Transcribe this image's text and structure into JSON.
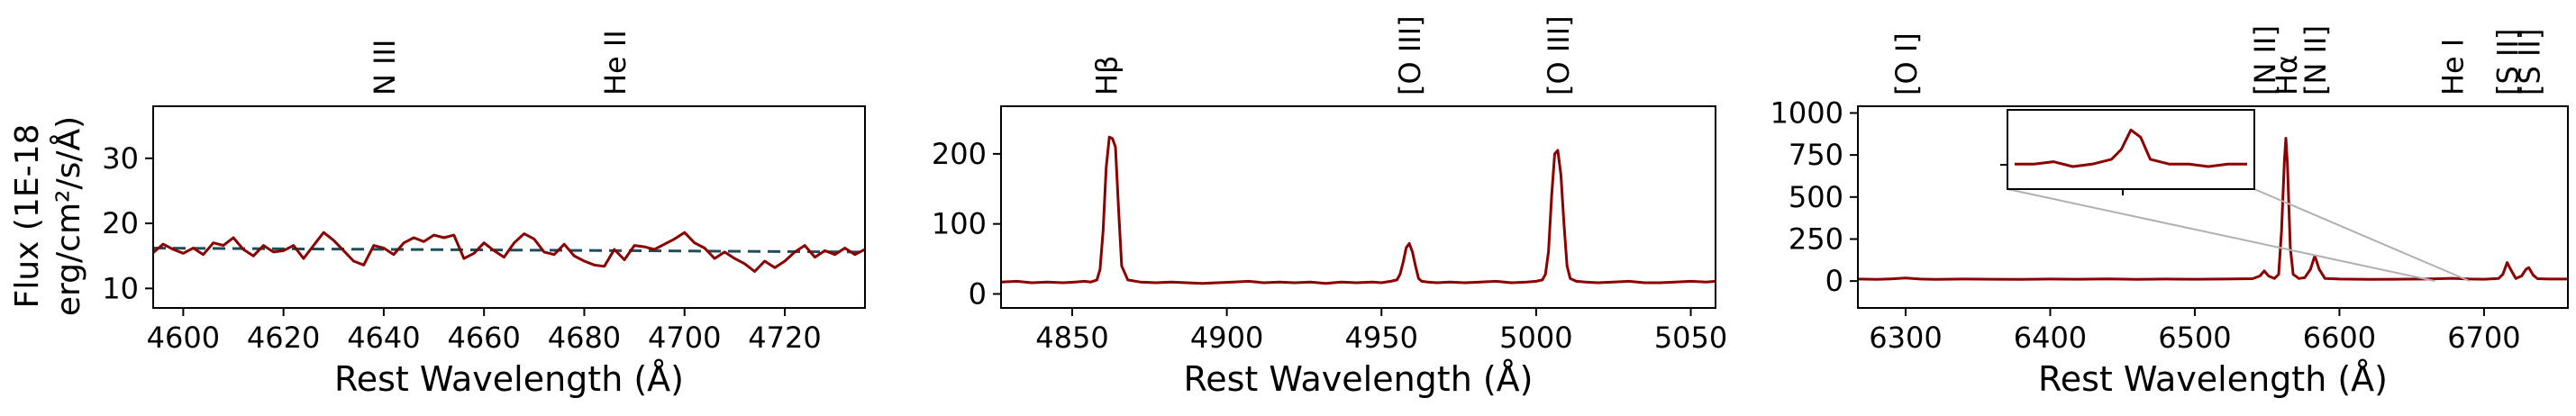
{
  "figure": {
    "ylabel_line1": "Flux (1E-18",
    "ylabel_line2": "erg/cm²/s/Å)"
  },
  "colors": {
    "spectrum": "#8b0000",
    "continuum": "#1f4e5a",
    "inset_connector": "#b0b0b0"
  },
  "chart_data": [
    {
      "type": "line",
      "xlabel": "Rest Wavelength (Å)",
      "xlim": [
        4594,
        4736
      ],
      "ylim": [
        7,
        38
      ],
      "xticks": [
        4600,
        4620,
        4640,
        4660,
        4680,
        4700,
        4720
      ],
      "yticks": [
        10,
        20,
        30
      ],
      "line_labels": [
        {
          "label": "N III",
          "x": 4640
        },
        {
          "label": "He II",
          "x": 4686
        }
      ],
      "continuum": {
        "style": "dashed",
        "x": [
          4594,
          4736
        ],
        "y": [
          16.2,
          15.6
        ]
      },
      "series": [
        {
          "x": [
            4594,
            4596,
            4598,
            4600,
            4602,
            4604,
            4606,
            4608,
            4610,
            4612,
            4614,
            4616,
            4618,
            4620,
            4622,
            4624,
            4626,
            4628,
            4630,
            4632,
            4634,
            4636,
            4638,
            4640,
            4642,
            4644,
            4646,
            4648,
            4650,
            4652,
            4654,
            4656,
            4658,
            4660,
            4662,
            4664,
            4666,
            4668,
            4670,
            4672,
            4674,
            4676,
            4678,
            4680,
            4682,
            4684,
            4686,
            4688,
            4690,
            4692,
            4694,
            4696,
            4698,
            4700,
            4702,
            4704,
            4706,
            4708,
            4710,
            4712,
            4714,
            4716,
            4718,
            4720,
            4722,
            4724,
            4726,
            4728,
            4730,
            4732,
            4734,
            4736
          ],
          "y": [
            15.5,
            16.8,
            16.0,
            15.4,
            16.2,
            15.2,
            17.0,
            16.6,
            17.8,
            16.0,
            15.0,
            16.6,
            15.6,
            15.8,
            16.6,
            14.6,
            16.6,
            18.6,
            17.4,
            15.8,
            14.2,
            13.6,
            16.6,
            16.2,
            15.2,
            17.0,
            17.8,
            17.2,
            18.2,
            17.8,
            18.2,
            14.6,
            15.4,
            17.0,
            15.8,
            14.8,
            17.0,
            18.4,
            17.6,
            15.6,
            15.2,
            16.8,
            15.0,
            14.2,
            13.6,
            13.4,
            16.0,
            14.4,
            16.6,
            16.4,
            16.0,
            16.8,
            17.6,
            18.6,
            17.0,
            16.2,
            14.6,
            15.6,
            14.6,
            13.8,
            12.6,
            14.2,
            13.2,
            14.2,
            15.6,
            16.6,
            14.8,
            15.8,
            15.2,
            16.2,
            15.2,
            16.0
          ]
        }
      ]
    },
    {
      "type": "line",
      "xlabel": "Rest Wavelength (Å)",
      "xlim": [
        4827,
        5058
      ],
      "ylim": [
        -20,
        268
      ],
      "xticks": [
        4850,
        4900,
        4950,
        5000,
        5050
      ],
      "yticks": [
        0,
        100,
        200
      ],
      "line_labels": [
        {
          "label": "Hβ",
          "x": 4861
        },
        {
          "label": "[O III]",
          "x": 4959
        },
        {
          "label": "[O III]",
          "x": 5007
        }
      ],
      "series": [
        {
          "x": [
            4827,
            4832,
            4837,
            4842,
            4847,
            4851,
            4854,
            4856,
            4858,
            4859,
            4860,
            4861,
            4862,
            4863,
            4864,
            4865,
            4866,
            4868,
            4872,
            4877,
            4882,
            4887,
            4892,
            4897,
            4902,
            4907,
            4912,
            4917,
            4922,
            4927,
            4932,
            4937,
            4942,
            4947,
            4950,
            4953,
            4955,
            4956,
            4957,
            4958,
            4959,
            4960,
            4961,
            4962,
            4963,
            4965,
            4968,
            4972,
            4977,
            4982,
            4987,
            4992,
            4997,
            5000,
            5002,
            5003,
            5004,
            5005,
            5006,
            5007,
            5008,
            5009,
            5010,
            5011,
            5013,
            5016,
            5020,
            5025,
            5030,
            5035,
            5040,
            5045,
            5050,
            5055,
            5058
          ],
          "y": [
            17,
            18,
            16,
            17,
            16,
            17,
            18,
            17,
            20,
            35,
            90,
            180,
            224,
            222,
            210,
            120,
            40,
            20,
            17,
            16,
            17,
            16,
            15,
            16,
            17,
            18,
            16,
            17,
            16,
            17,
            15,
            17,
            16,
            17,
            16,
            18,
            20,
            28,
            45,
            66,
            72,
            60,
            40,
            22,
            18,
            17,
            16,
            17,
            16,
            17,
            18,
            16,
            17,
            18,
            20,
            28,
            60,
            140,
            200,
            205,
            170,
            100,
            40,
            22,
            18,
            17,
            16,
            17,
            18,
            16,
            16,
            17,
            18,
            17,
            18
          ]
        }
      ]
    },
    {
      "type": "line",
      "xlabel": "Rest Wavelength (Å)",
      "xlim": [
        6267,
        6758
      ],
      "ylim": [
        -160,
        1040
      ],
      "xticks": [
        6300,
        6400,
        6500,
        6600,
        6700
      ],
      "yticks": [
        0,
        250,
        500,
        750,
        1000
      ],
      "line_labels": [
        {
          "label": "[O I]",
          "x": 6300
        },
        {
          "label": "[N II]",
          "x": 6548
        },
        {
          "label": "Hα",
          "x": 6563
        },
        {
          "label": "[N II]",
          "x": 6583
        },
        {
          "label": "He I",
          "x": 6678
        },
        {
          "label": "[S II]",
          "x": 6716
        },
        {
          "label": "[S II]",
          "x": 6731
        }
      ],
      "series": [
        {
          "x": [
            6267,
            6280,
            6290,
            6300,
            6310,
            6320,
            6340,
            6360,
            6380,
            6400,
            6420,
            6440,
            6460,
            6480,
            6500,
            6520,
            6540,
            6545,
            6548,
            6551,
            6555,
            6558,
            6560,
            6562,
            6563,
            6564,
            6566,
            6568,
            6572,
            6576,
            6580,
            6583,
            6586,
            6590,
            6600,
            6620,
            6640,
            6660,
            6678,
            6690,
            6700,
            6710,
            6713,
            6716,
            6719,
            6722,
            6726,
            6729,
            6731,
            6734,
            6737,
            6745,
            6758
          ],
          "y": [
            12,
            10,
            13,
            18,
            12,
            10,
            12,
            11,
            10,
            12,
            11,
            13,
            10,
            12,
            11,
            12,
            14,
            30,
            60,
            30,
            15,
            40,
            300,
            720,
            850,
            700,
            200,
            40,
            15,
            20,
            70,
            150,
            70,
            15,
            12,
            10,
            11,
            12,
            16,
            12,
            11,
            15,
            40,
            110,
            60,
            15,
            30,
            70,
            80,
            35,
            14,
            12,
            12
          ]
        }
      ],
      "inset": {
        "x": [
          6666,
          6668,
          6670,
          6672,
          6674,
          6676,
          6677,
          6678,
          6679,
          6680,
          6682,
          6684,
          6686,
          6688,
          6690
        ],
        "y": [
          8,
          8,
          9,
          7,
          8,
          10,
          14,
          22,
          19,
          10,
          8,
          8,
          7,
          8,
          8
        ]
      }
    }
  ]
}
